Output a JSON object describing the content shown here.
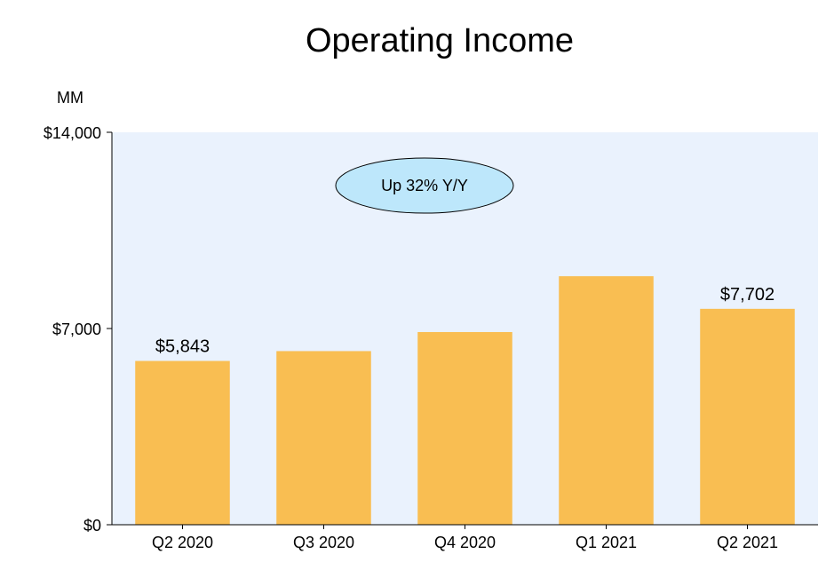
{
  "chart_data": {
    "type": "bar",
    "title": "Operating Income",
    "unit_label": "MM",
    "categories": [
      "Q2 2020",
      "Q3 2020",
      "Q4 2020",
      "Q1 2021",
      "Q2 2021"
    ],
    "values": [
      5843,
      6194,
      6873,
      8865,
      7702
    ],
    "data_labels": [
      "$5,843",
      "",
      "",
      "",
      "$7,702"
    ],
    "ylim": [
      0,
      14000
    ],
    "yticks": [
      0,
      7000,
      14000
    ],
    "ytick_labels": [
      "$0",
      "$7,000",
      "$14,000"
    ],
    "annotation": "Up 32% Y/Y",
    "legend": "none",
    "grid": false,
    "colors": {
      "bar": "#f9be52",
      "plot_background": "#eaf2fd",
      "annotation_fill": "#bde7fb",
      "axis": "#000000"
    }
  }
}
